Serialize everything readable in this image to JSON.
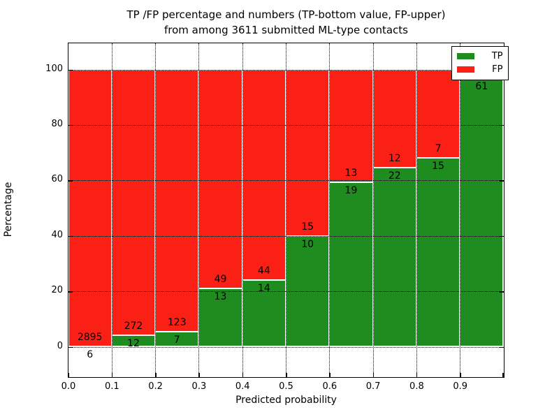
{
  "figure": {
    "title_line1": "TP /FP percentage and numbers (TP-bottom value, FP-upper)",
    "title_line2": "from among 3611 submitted ML-type contacts"
  },
  "axes": {
    "xlabel": "Predicted probability",
    "ylabel": "Percentage",
    "x_tick_labels": [
      "0.0",
      "0.1",
      "0.2",
      "0.3",
      "0.4",
      "0.5",
      "0.6",
      "0.7",
      "0.8",
      "0.9"
    ],
    "y_tick_labels": [
      "0",
      "20",
      "40",
      "60",
      "80",
      "100"
    ],
    "y_tick_values": [
      0,
      20,
      40,
      60,
      80,
      100
    ]
  },
  "legend": {
    "items": [
      {
        "label": "TP",
        "color": "#1e8c1e"
      },
      {
        "label": "FP",
        "color": "#fb2015"
      }
    ]
  },
  "colors": {
    "tp_green": "#1e8c1e",
    "fp_red": "#fb2015",
    "grid": "#000000",
    "background": "#ffffff"
  },
  "chart_data": {
    "type": "bar",
    "stacked": true,
    "normalized_to_100_pct": true,
    "title": "TP /FP percentage and numbers (TP-bottom value, FP-upper) from among 3611 submitted ML-type contacts",
    "xlabel": "Predicted probability",
    "ylabel": "Percentage",
    "total_contacts_in_title": 3611,
    "xlim": [
      0.0,
      1.0
    ],
    "ylim": [
      -11,
      110
    ],
    "grid": "dotted",
    "legend_position": "upper right",
    "bin_edges": [
      0.0,
      0.1,
      0.2,
      0.3,
      0.4,
      0.5,
      0.6,
      0.7,
      0.8,
      0.9,
      1.0
    ],
    "series_names": [
      "TP",
      "FP"
    ],
    "bars": [
      {
        "bin": "0.0-0.1",
        "tp_count_label": "6",
        "fp_count_label": "2895",
        "tp_pct": 0.21
      },
      {
        "bin": "0.1-0.2",
        "tp_count_label": "12",
        "fp_count_label": "272",
        "tp_pct": 4.2
      },
      {
        "bin": "0.2-0.3",
        "tp_count_label": "7",
        "fp_count_label": "123",
        "tp_pct": 5.4
      },
      {
        "bin": "0.3-0.4",
        "tp_count_label": "13",
        "fp_count_label": "49",
        "tp_pct": 21.0
      },
      {
        "bin": "0.4-0.5",
        "tp_count_label": "14",
        "fp_count_label": "44",
        "tp_pct": 24.1
      },
      {
        "bin": "0.5-0.6",
        "tp_count_label": "10",
        "fp_count_label": "15",
        "tp_pct": 40.0
      },
      {
        "bin": "0.6-0.7",
        "tp_count_label": "19",
        "fp_count_label": "13",
        "tp_pct": 59.4
      },
      {
        "bin": "0.7-0.8",
        "tp_count_label": "22",
        "fp_count_label": "12",
        "tp_pct": 64.7
      },
      {
        "bin": "0.8-0.9",
        "tp_count_label": "15",
        "fp_count_label": "7",
        "tp_pct": 68.2
      },
      {
        "bin": "0.9-1.0",
        "tp_count_label": "61",
        "fp_count_label": "",
        "tp_pct": 96.8
      }
    ]
  }
}
